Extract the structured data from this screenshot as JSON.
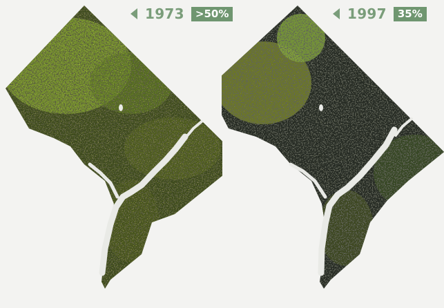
{
  "panels": [
    {
      "year": "1973",
      "canopy": ">50%",
      "arrow_icon": "left-triangle-icon"
    },
    {
      "year": "1997",
      "canopy": "35%",
      "arrow_icon": "left-triangle-icon"
    }
  ],
  "colors": {
    "label_green": "#7a9d7a",
    "badge_green": "#6f9670",
    "tree_canopy_1973": "#7b8a2a",
    "tree_canopy_1997": "#2d3326",
    "background": "#f3f3f1"
  }
}
